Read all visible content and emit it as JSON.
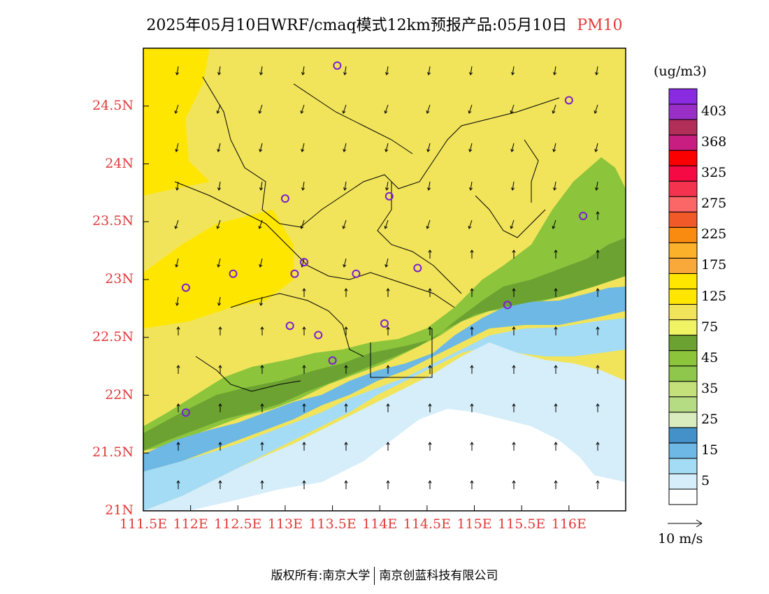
{
  "title": {
    "main": "2025年05月10日WRF/cmaq模式12km预报产品:05月10日",
    "pollutant": "PM10"
  },
  "colorbar": {
    "units": "(ug/m3)",
    "levels": [
      {
        "label": "",
        "color": "#ffffff"
      },
      {
        "label": "5",
        "color": "#d6eefa"
      },
      {
        "label": "",
        "color": "#a5dcf5"
      },
      {
        "label": "15",
        "color": "#6db8e5"
      },
      {
        "label": "",
        "color": "#4490c8"
      },
      {
        "label": "25",
        "color": "#d8ecbd"
      },
      {
        "label": "",
        "color": "#b5dc82"
      },
      {
        "label": "35",
        "color": "#c4e07a"
      },
      {
        "label": "",
        "color": "#8ec74c"
      },
      {
        "label": "45",
        "color": "#8cc43c"
      },
      {
        "label": "",
        "color": "#6ba232"
      },
      {
        "label": "75",
        "color": "#f0f363"
      },
      {
        "label": "",
        "color": "#f1e45a"
      },
      {
        "label": "125",
        "color": "#ffe600"
      },
      {
        "label": "",
        "color": "#ffe600"
      },
      {
        "label": "175",
        "color": "#f9a83a"
      },
      {
        "label": "",
        "color": "#fbb12a"
      },
      {
        "label": "225",
        "color": "#f98c10"
      },
      {
        "label": "",
        "color": "#f15a28"
      },
      {
        "label": "275",
        "color": "#fb6666"
      },
      {
        "label": "",
        "color": "#f4344e"
      },
      {
        "label": "325",
        "color": "#f60a44"
      },
      {
        "label": "",
        "color": "#fb0000"
      },
      {
        "label": "368",
        "color": "#c81e82"
      },
      {
        "label": "",
        "color": "#b12e58"
      },
      {
        "label": "403",
        "color": "#9a2fc8"
      },
      {
        "label": "",
        "color": "#8a2be2"
      }
    ]
  },
  "axes": {
    "lat_ticks": [
      "24.5N",
      "24N",
      "23.5N",
      "23N",
      "22.5N",
      "22N",
      "21.5N",
      "21N"
    ],
    "lon_ticks": [
      "111.5E",
      "112E",
      "112.5E",
      "113E",
      "113.5E",
      "114E",
      "114.5E",
      "115E",
      "115.5E",
      "116E"
    ],
    "lat_range": [
      21,
      25.0
    ],
    "lon_range": [
      111.5,
      116.6
    ]
  },
  "wind_reference": "10 m/s",
  "stations": [
    {
      "lon": 113.55,
      "lat": 24.85
    },
    {
      "lon": 116.0,
      "lat": 24.55
    },
    {
      "lon": 113.0,
      "lat": 23.7
    },
    {
      "lon": 114.1,
      "lat": 23.72
    },
    {
      "lon": 116.15,
      "lat": 23.55
    },
    {
      "lon": 112.45,
      "lat": 23.05
    },
    {
      "lon": 113.1,
      "lat": 23.05
    },
    {
      "lon": 113.2,
      "lat": 23.15
    },
    {
      "lon": 113.75,
      "lat": 23.05
    },
    {
      "lon": 114.4,
      "lat": 23.1
    },
    {
      "lon": 111.95,
      "lat": 22.93
    },
    {
      "lon": 113.05,
      "lat": 22.6
    },
    {
      "lon": 113.35,
      "lat": 22.52
    },
    {
      "lon": 114.05,
      "lat": 22.62
    },
    {
      "lon": 113.5,
      "lat": 22.3
    },
    {
      "lon": 115.35,
      "lat": 22.78
    },
    {
      "lon": 111.95,
      "lat": 21.85
    }
  ],
  "footer": {
    "copyright": "版权所有:南京大学",
    "company": "南京创蓝科技有限公司"
  }
}
